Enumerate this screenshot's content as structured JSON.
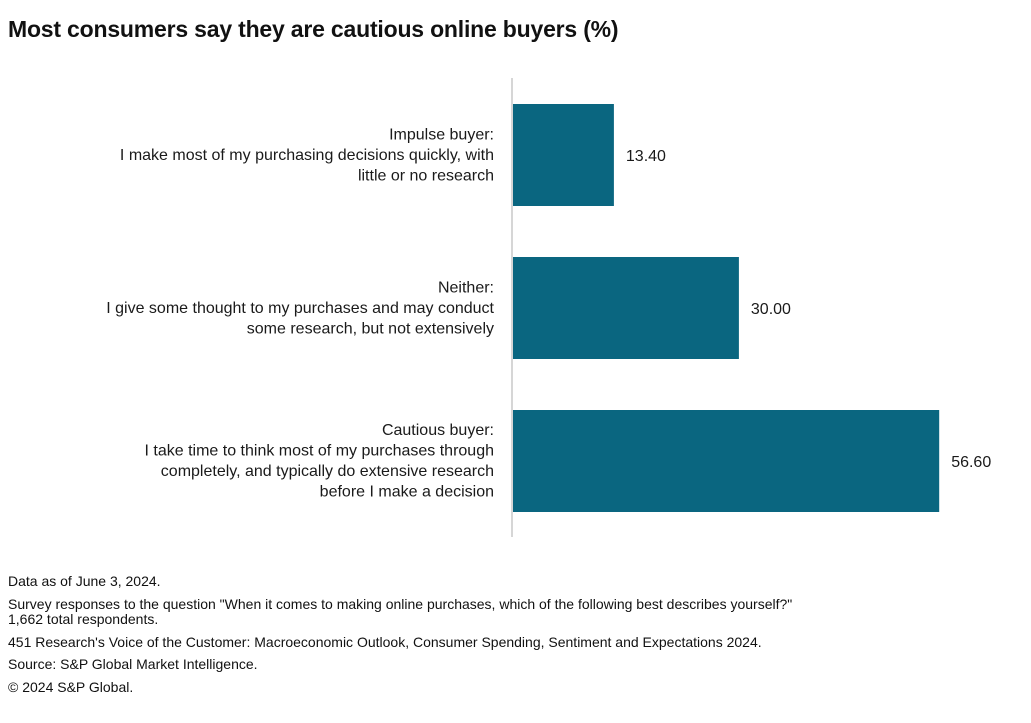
{
  "title": "Most consumers say they are cautious online buyers (%)",
  "chart_data": {
    "type": "bar",
    "orientation": "horizontal",
    "title": "Most consumers say they are cautious online buyers (%)",
    "categories": [
      [
        "Impulse buyer:",
        "I make most of my purchasing decisions quickly, with",
        "little or no research"
      ],
      [
        "Neither:",
        "I give some thought to my purchases and may conduct",
        "some research, but not extensively"
      ],
      [
        "Cautious buyer:",
        "I take time to think most of my purchases through",
        "completely, and typically do extensive research",
        "before I make a decision"
      ]
    ],
    "values": [
      13.4,
      30.0,
      56.6
    ],
    "value_labels": [
      "13.40",
      "30.00",
      "56.60"
    ],
    "xlim": [
      0,
      60
    ],
    "grid": false,
    "legend": "none",
    "bar_color": "#0a6680"
  },
  "notes": [
    "Data as of June 3, 2024.",
    "Survey responses to the question \"When it comes to making online purchases, which of the following best describes yourself?\"",
    "1,662 total respondents.",
    "451 Research's Voice of the Customer: Macroeconomic Outlook, Consumer Spending, Sentiment and Expectations 2024.",
    "Source: S&P Global Market Intelligence.",
    "© 2024 S&P Global."
  ]
}
